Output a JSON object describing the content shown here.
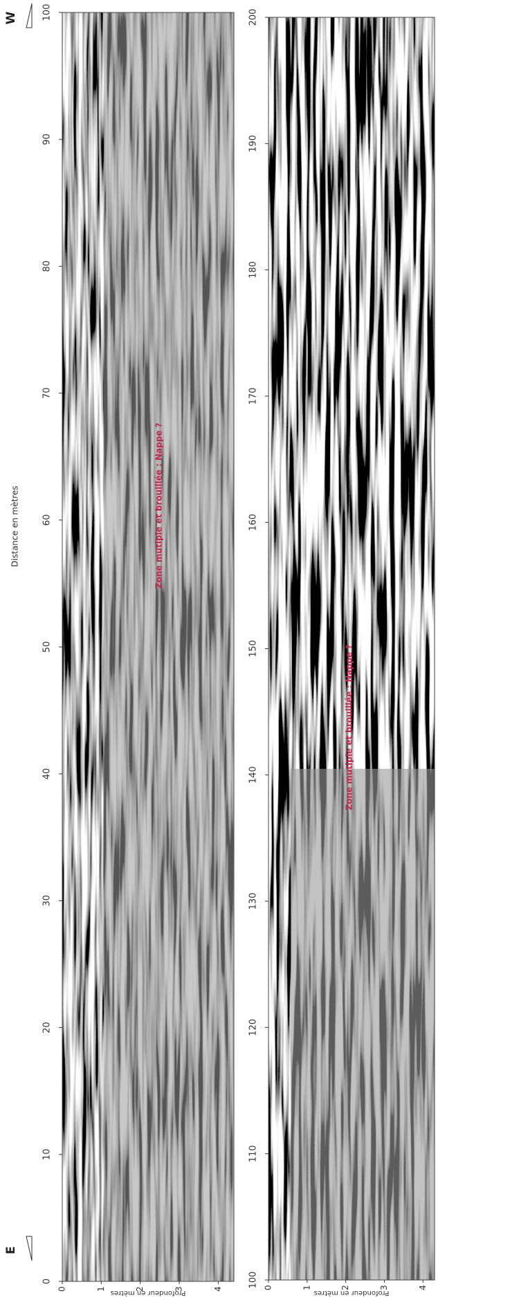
{
  "chart_data": [
    {
      "type": "radargram",
      "x_label": "Distance en mètres",
      "y_label": "Profondeur en mètres",
      "xlim": [
        0,
        100
      ],
      "xticks": [
        0,
        10,
        20,
        30,
        40,
        50,
        60,
        70,
        80,
        90,
        100
      ],
      "ylim": [
        0,
        4.4
      ],
      "yticks": [
        0,
        1,
        2,
        3,
        4
      ],
      "annotation": "Zone mutiple et brouillée : Nappe ?",
      "start_label": "E",
      "end_label": "W"
    },
    {
      "type": "radargram",
      "y_label": "Profondeur en mètres",
      "xlim": [
        100,
        200
      ],
      "xticks": [
        100,
        110,
        120,
        130,
        140,
        150,
        160,
        170,
        180,
        190,
        200
      ],
      "ylim": [
        0,
        4.3
      ],
      "yticks": [
        0,
        1,
        2,
        3,
        4
      ],
      "annotation": "Zone mutiple et brouillée : Nappe ?"
    }
  ]
}
